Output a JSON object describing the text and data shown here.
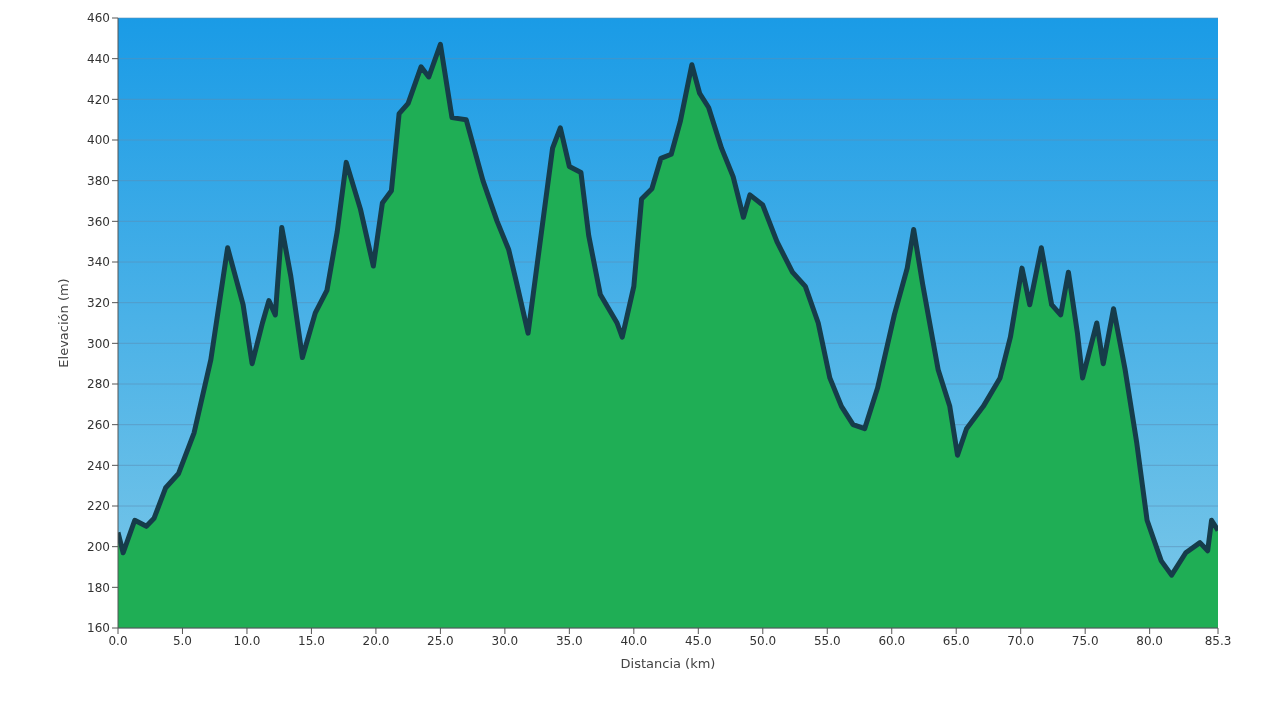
{
  "chart_data": {
    "type": "area",
    "xlabel": "Distancia   (km)",
    "ylabel": "Elevación (m)",
    "x": [
      0,
      0.4,
      1.3,
      2.2,
      2.8,
      3.7,
      4.7,
      5.9,
      7.2,
      8.5,
      9.7,
      10.4,
      11.2,
      11.7,
      12.2,
      12.7,
      13.4,
      14.3,
      15.3,
      16.2,
      17.0,
      17.7,
      18.8,
      19.8,
      20.5,
      21.2,
      21.8,
      22.5,
      23.5,
      24.1,
      25.0,
      25.9,
      27.0,
      28.3,
      29.4,
      30.3,
      30.9,
      31.8,
      32.8,
      33.7,
      34.3,
      35.0,
      35.9,
      36.5,
      37.4,
      38.7,
      39.1,
      40.0,
      40.6,
      41.4,
      42.1,
      42.9,
      43.6,
      44.5,
      45.1,
      45.8,
      46.8,
      47.7,
      48.5,
      49.0,
      50.0,
      51.1,
      52.3,
      53.3,
      54.3,
      55.2,
      56.1,
      57.0,
      57.9,
      58.9,
      60.2,
      61.2,
      61.7,
      62.4,
      63.6,
      64.5,
      65.1,
      65.8,
      67.1,
      68.4,
      69.2,
      70.1,
      70.7,
      71.6,
      72.4,
      73.1,
      73.7,
      74.4,
      74.8,
      75.9,
      76.4,
      77.2,
      78.1,
      79.0,
      79.8,
      80.9,
      81.7,
      82.8,
      83.9,
      84.5,
      84.8,
      85.3
    ],
    "series": [
      {
        "color": "#1fae55",
        "values": [
          207,
          197,
          213,
          210,
          214,
          229,
          236,
          256,
          292,
          347,
          319,
          290,
          310,
          321,
          314,
          357,
          333,
          293,
          315,
          326,
          355,
          389,
          366,
          338,
          369,
          375,
          413,
          418,
          436,
          431,
          447,
          411,
          410,
          380,
          360,
          346,
          330,
          305,
          353,
          396,
          406,
          387,
          384,
          353,
          324,
          310,
          303,
          328,
          371,
          376,
          391,
          393,
          409,
          437,
          423,
          416,
          396,
          382,
          362,
          373,
          368,
          350,
          335,
          328,
          310,
          283,
          269,
          260,
          258,
          278,
          314,
          337,
          356,
          329,
          287,
          269,
          245,
          258,
          269,
          283,
          303,
          337,
          319,
          347,
          319,
          314,
          335,
          305,
          283,
          310,
          290,
          317,
          287,
          251,
          213,
          193,
          186,
          197,
          202,
          198,
          213,
          208
        ]
      }
    ],
    "xlim": [
      0,
      85.3
    ],
    "xticks": [
      {
        "value": 0,
        "label": "0.0"
      },
      {
        "value": 5,
        "label": "5.0"
      },
      {
        "value": 10,
        "label": "10.0"
      },
      {
        "value": 15,
        "label": "15.0"
      },
      {
        "value": 20,
        "label": "20.0"
      },
      {
        "value": 25,
        "label": "25.0"
      },
      {
        "value": 30,
        "label": "30.0"
      },
      {
        "value": 35,
        "label": "35.0"
      },
      {
        "value": 40,
        "label": "40.0"
      },
      {
        "value": 45,
        "label": "45.0"
      },
      {
        "value": 50,
        "label": "50.0"
      },
      {
        "value": 55,
        "label": "55.0"
      },
      {
        "value": 60,
        "label": "60.0"
      },
      {
        "value": 65,
        "label": "65.0"
      },
      {
        "value": 70,
        "label": "70.0"
      },
      {
        "value": 75,
        "label": "75.0"
      },
      {
        "value": 80,
        "label": "80.0"
      },
      {
        "value": 85.3,
        "label": "85.3"
      }
    ],
    "ylim": [
      160,
      460
    ],
    "yticks": [
      160,
      180,
      200,
      220,
      240,
      260,
      280,
      300,
      320,
      340,
      360,
      380,
      400,
      420,
      440,
      460
    ],
    "grid": "y"
  }
}
